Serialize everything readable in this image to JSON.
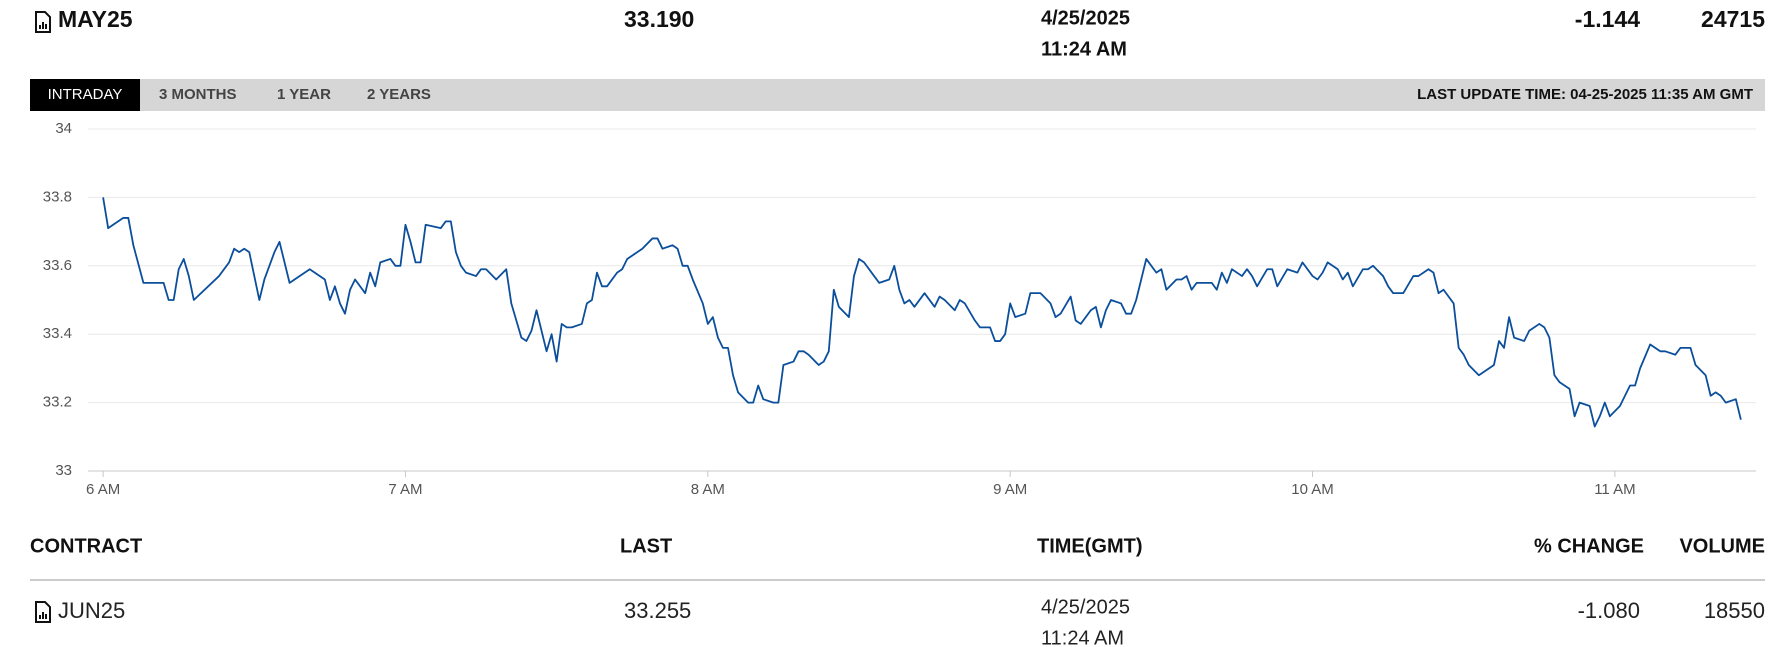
{
  "header": {
    "contract": "MAY25",
    "last": "33.190",
    "date": "4/25/2025",
    "time": "11:24 AM",
    "change": "-1.144",
    "volume": "24715"
  },
  "tabs": [
    "INTRADAY",
    "3 MONTHS",
    "1 YEAR",
    "2 YEARS"
  ],
  "last_update": "LAST UPDATE TIME: 04-25-2025 11:35 AM GMT",
  "chart_data": {
    "type": "line",
    "color": "#0b4f9c",
    "grid": true,
    "x": [
      360,
      361,
      364,
      365,
      366,
      368,
      371,
      372,
      373,
      374,
      375,
      376,
      377,
      378,
      383,
      385,
      386,
      387,
      388,
      389,
      391,
      392,
      394,
      395,
      397,
      401,
      404,
      405,
      406,
      407,
      408,
      409,
      410,
      412,
      413,
      414,
      415,
      417,
      418,
      419,
      420,
      421,
      422,
      423,
      424,
      427,
      428,
      429,
      430,
      431,
      432,
      434,
      435,
      436,
      438,
      440,
      441,
      443,
      444,
      445,
      446,
      448,
      449,
      450,
      451,
      452,
      453,
      455,
      456,
      457,
      458,
      459,
      460,
      462,
      463,
      464,
      466,
      467,
      469,
      470,
      471,
      473,
      474,
      475,
      476,
      477,
      479,
      480,
      481,
      482,
      483,
      484,
      485,
      486,
      488,
      489,
      490,
      491,
      493,
      494,
      495,
      497,
      498,
      499,
      500,
      502,
      503,
      504,
      505,
      506,
      508,
      509,
      510,
      511,
      513,
      514,
      516,
      517,
      518,
      519,
      520,
      521,
      523,
      525,
      526,
      527,
      529,
      530,
      531,
      533,
      534,
      536,
      537,
      538,
      539,
      540,
      541,
      543,
      544,
      546,
      548,
      549,
      550,
      552,
      553,
      554,
      556,
      557,
      558,
      559,
      560,
      562,
      563,
      564,
      565,
      567,
      569,
      570,
      571,
      573,
      574,
      575,
      576,
      577,
      580,
      581,
      582,
      583,
      584,
      586,
      587,
      588,
      589,
      591,
      592,
      593,
      595,
      597,
      598,
      600,
      601,
      602,
      603,
      605,
      606,
      607,
      608,
      610,
      611,
      612,
      614,
      615,
      616,
      617,
      618,
      620,
      621,
      623,
      624,
      625,
      626,
      628,
      629,
      630,
      631,
      633,
      634,
      636,
      637,
      638,
      639,
      640,
      642,
      643,
      645,
      646,
      647,
      648,
      649,
      651,
      652,
      653,
      655,
      656,
      657,
      658,
      659,
      661,
      662,
      663,
      664,
      665,
      667,
      669,
      670,
      672,
      673,
      675,
      676,
      678,
      679,
      680,
      681,
      682,
      684,
      685
    ],
    "values": [
      33.8,
      33.71,
      33.74,
      33.74,
      33.66,
      33.55,
      33.55,
      33.55,
      33.5,
      33.5,
      33.59,
      33.62,
      33.57,
      33.5,
      33.57,
      33.61,
      33.65,
      33.64,
      33.65,
      33.64,
      33.5,
      33.56,
      33.64,
      33.67,
      33.55,
      33.59,
      33.56,
      33.5,
      33.54,
      33.49,
      33.46,
      33.53,
      33.56,
      33.52,
      33.58,
      33.54,
      33.61,
      33.62,
      33.6,
      33.6,
      33.72,
      33.67,
      33.61,
      33.61,
      33.72,
      33.71,
      33.73,
      33.73,
      33.64,
      33.6,
      33.58,
      33.57,
      33.59,
      33.59,
      33.56,
      33.59,
      33.49,
      33.39,
      33.38,
      33.41,
      33.47,
      33.35,
      33.4,
      33.32,
      33.43,
      33.42,
      33.42,
      33.43,
      33.49,
      33.5,
      33.58,
      33.54,
      33.54,
      33.58,
      33.59,
      33.62,
      33.64,
      33.65,
      33.68,
      33.68,
      33.65,
      33.66,
      33.65,
      33.6,
      33.6,
      33.56,
      33.49,
      33.43,
      33.45,
      33.39,
      33.36,
      33.36,
      33.28,
      33.23,
      33.2,
      33.2,
      33.25,
      33.21,
      33.2,
      33.2,
      33.31,
      33.32,
      33.35,
      33.35,
      33.34,
      33.31,
      33.32,
      33.35,
      33.53,
      33.48,
      33.45,
      33.57,
      33.62,
      33.61,
      33.57,
      33.55,
      33.56,
      33.6,
      33.53,
      33.49,
      33.5,
      33.48,
      33.52,
      33.48,
      33.51,
      33.5,
      33.47,
      33.5,
      33.49,
      33.44,
      33.42,
      33.42,
      33.38,
      33.38,
      33.4,
      33.49,
      33.45,
      33.46,
      33.52,
      33.52,
      33.49,
      33.45,
      33.46,
      33.51,
      33.44,
      33.43,
      33.47,
      33.48,
      33.42,
      33.47,
      33.5,
      33.49,
      33.46,
      33.46,
      33.5,
      33.62,
      33.58,
      33.59,
      33.53,
      33.56,
      33.56,
      33.57,
      33.53,
      33.55,
      33.55,
      33.53,
      33.58,
      33.55,
      33.59,
      33.57,
      33.59,
      33.57,
      33.54,
      33.59,
      33.59,
      33.54,
      33.59,
      33.58,
      33.61,
      33.57,
      33.56,
      33.58,
      33.61,
      33.59,
      33.56,
      33.58,
      33.54,
      33.59,
      33.59,
      33.6,
      33.57,
      33.54,
      33.52,
      33.52,
      33.52,
      33.57,
      33.57,
      33.59,
      33.58,
      33.52,
      33.53,
      33.49,
      33.36,
      33.34,
      33.31,
      33.28,
      33.29,
      33.31,
      33.38,
      33.36,
      33.45,
      33.39,
      33.38,
      33.41,
      33.43,
      33.42,
      33.39,
      33.28,
      33.26,
      33.24,
      33.16,
      33.2,
      33.19,
      33.13,
      33.16,
      33.2,
      33.16,
      33.19,
      33.22,
      33.25,
      33.25,
      33.3,
      33.37,
      33.35,
      33.35,
      33.34,
      33.36,
      33.36,
      33.31,
      33.28,
      33.22,
      33.23,
      33.22,
      33.2,
      33.21,
      33.15
    ],
    "xlim": [
      357,
      688
    ],
    "xticks": [
      {
        "value": 360,
        "label": "6 AM"
      },
      {
        "value": 420,
        "label": "7 AM"
      },
      {
        "value": 480,
        "label": "8 AM"
      },
      {
        "value": 540,
        "label": "9 AM"
      },
      {
        "value": 600,
        "label": "10 AM"
      },
      {
        "value": 660,
        "label": "11 AM"
      }
    ],
    "ylim": [
      33,
      34
    ],
    "yticks": [
      33,
      33.2,
      33.4,
      33.6,
      33.8,
      34
    ]
  },
  "table": {
    "columns": [
      "CONTRACT",
      "LAST",
      "TIME(GMT)",
      "% CHANGE",
      "VOLUME"
    ],
    "rows": [
      {
        "contract": "JUN25",
        "last": "33.255",
        "date": "4/25/2025",
        "time": "11:24 AM",
        "change": "-1.080",
        "volume": "18550"
      }
    ]
  }
}
